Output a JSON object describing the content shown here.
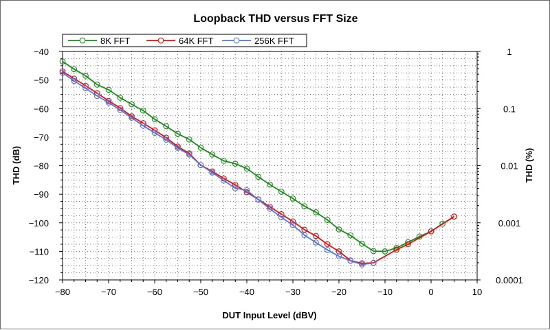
{
  "chart_data": {
    "type": "line",
    "title": "Loopback THD versus FFT Size",
    "xlabel": "DUT Input Level (dBV)",
    "ylabel": "THD (dB)",
    "y2label": "THD (%)",
    "xlim": [
      -80,
      10
    ],
    "ylim": [
      -120,
      -40
    ],
    "xticks": [
      "-80",
      "-70",
      "-60",
      "-50",
      "-40",
      "-30",
      "-20",
      "-10",
      "0",
      "10"
    ],
    "yticks": [
      "-40",
      "-50",
      "-60",
      "-70",
      "-80",
      "-90",
      "-100",
      "-110",
      "-120"
    ],
    "y2ticks": [
      "1",
      "0.1",
      "0.01",
      "0.001",
      "0.0001"
    ],
    "grid": true,
    "legend_position": "top-left",
    "series": [
      {
        "name": "8K FFT",
        "color": "#1a8a1a",
        "points": [
          [
            -80,
            -43.5
          ],
          [
            -77.5,
            -46.2
          ],
          [
            -75,
            -48.5
          ],
          [
            -72.5,
            -51.6
          ],
          [
            -70,
            -53.4
          ],
          [
            -67.5,
            -56.2
          ],
          [
            -65,
            -58.5
          ],
          [
            -62.5,
            -60.7
          ],
          [
            -60,
            -63.7
          ],
          [
            -57.5,
            -66.2
          ],
          [
            -55,
            -68.8
          ],
          [
            -52.5,
            -70.8
          ],
          [
            -50,
            -73.7
          ],
          [
            -47.5,
            -76.1
          ],
          [
            -45,
            -78.3
          ],
          [
            -42.5,
            -79.3
          ],
          [
            -40,
            -81.0
          ],
          [
            -37.5,
            -83.9
          ],
          [
            -35,
            -86.6
          ],
          [
            -32.5,
            -89.1
          ],
          [
            -30,
            -91.5
          ],
          [
            -27.5,
            -94.2
          ],
          [
            -25,
            -96.3
          ],
          [
            -22.5,
            -99.0
          ],
          [
            -20,
            -102.3
          ],
          [
            -17.5,
            -104.4
          ],
          [
            -15,
            -107.3
          ],
          [
            -12.5,
            -109.9
          ],
          [
            -10,
            -110.0
          ],
          [
            -7.5,
            -108.8
          ],
          [
            -5,
            -106.8
          ],
          [
            -2.5,
            -104.8
          ],
          [
            0,
            -103.0
          ],
          [
            2.5,
            -100.3
          ],
          [
            5,
            -97.8
          ]
        ]
      },
      {
        "name": "64K FFT",
        "color": "#e01010",
        "points": [
          [
            -80,
            -47.0
          ],
          [
            -77.5,
            -49.5
          ],
          [
            -75,
            -52.0
          ],
          [
            -72.5,
            -54.6
          ],
          [
            -70,
            -57.3
          ],
          [
            -67.5,
            -59.8
          ],
          [
            -65,
            -62.7
          ],
          [
            -62.5,
            -65.1
          ],
          [
            -60,
            -67.6
          ],
          [
            -57.5,
            -70.2
          ],
          [
            -55,
            -73.3
          ],
          [
            -52.5,
            -75.7
          ],
          [
            -50,
            -79.8
          ],
          [
            -47.5,
            -82.0
          ],
          [
            -45,
            -84.5
          ],
          [
            -42.5,
            -86.7
          ],
          [
            -40,
            -89.3
          ],
          [
            -37.5,
            -91.8
          ],
          [
            -35,
            -94.4
          ],
          [
            -32.5,
            -97.0
          ],
          [
            -30,
            -99.5
          ],
          [
            -27.5,
            -102.4
          ],
          [
            -25,
            -104.6
          ],
          [
            -22.5,
            -107.5
          ],
          [
            -20,
            -110.0
          ],
          [
            -17.5,
            -113.2
          ],
          [
            -15,
            -114.2
          ],
          [
            -12.5,
            -114.0
          ],
          [
            -7.5,
            -109.4
          ],
          [
            -5,
            -107.5
          ],
          [
            0,
            -103.0
          ],
          [
            5,
            -97.8
          ]
        ]
      },
      {
        "name": "256K FFT",
        "color": "#5577d8",
        "points": [
          [
            -80,
            -47.5
          ],
          [
            -77.5,
            -50.3
          ],
          [
            -75,
            -52.9
          ],
          [
            -72.5,
            -55.6
          ],
          [
            -70,
            -57.9
          ],
          [
            -67.5,
            -60.5
          ],
          [
            -65,
            -63.2
          ],
          [
            -62.5,
            -66.0
          ],
          [
            -60,
            -68.5
          ],
          [
            -57.5,
            -70.9
          ],
          [
            -55,
            -73.8
          ],
          [
            -52.5,
            -76.1
          ],
          [
            -50,
            -79.8
          ],
          [
            -47.5,
            -82.4
          ],
          [
            -45,
            -85.2
          ],
          [
            -42.5,
            -87.9
          ],
          [
            -40,
            -88.6
          ],
          [
            -37.5,
            -91.9
          ],
          [
            -35,
            -95.1
          ],
          [
            -32.5,
            -98.1
          ],
          [
            -30,
            -100.8
          ],
          [
            -27.5,
            -104.3
          ],
          [
            -25,
            -106.9
          ],
          [
            -22.5,
            -109.5
          ],
          [
            -20,
            -111.7
          ],
          [
            -17.5,
            -113.3
          ],
          [
            -15,
            -114.6
          ],
          [
            -12.5,
            -114.1
          ]
        ]
      }
    ]
  }
}
